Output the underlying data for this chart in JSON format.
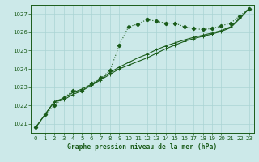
{
  "title": "Graphe pression niveau de la mer (hPa)",
  "background_color": "#cce9e9",
  "grid_color": "#aad4d4",
  "line_color": "#1a5c1a",
  "xlim": [
    -0.5,
    23.5
  ],
  "ylim": [
    1020.5,
    1027.5
  ],
  "yticks": [
    1021,
    1022,
    1023,
    1024,
    1025,
    1026,
    1027
  ],
  "xticks": [
    0,
    1,
    2,
    3,
    4,
    5,
    6,
    7,
    8,
    9,
    10,
    11,
    12,
    13,
    14,
    15,
    16,
    17,
    18,
    19,
    20,
    21,
    22,
    23
  ],
  "series1_x": [
    0,
    1,
    2,
    3,
    4,
    5,
    6,
    7,
    8,
    9,
    10,
    11,
    12,
    13,
    14,
    15,
    16,
    17,
    18,
    19,
    20,
    21,
    22,
    23
  ],
  "series1_y": [
    1020.8,
    1021.5,
    1022.0,
    1022.4,
    1022.8,
    1022.8,
    1023.2,
    1023.5,
    1023.9,
    1025.3,
    1026.3,
    1026.45,
    1026.7,
    1026.6,
    1026.5,
    1026.5,
    1026.3,
    1026.2,
    1026.15,
    1026.2,
    1026.35,
    1026.5,
    1026.9,
    1027.3
  ],
  "series2_x": [
    0,
    1,
    2,
    3,
    4,
    5,
    6,
    7,
    8,
    9,
    10,
    11,
    12,
    13,
    14,
    15,
    16,
    17,
    18,
    19,
    20,
    21,
    22,
    23
  ],
  "series2_y": [
    1020.8,
    1021.5,
    1022.2,
    1022.3,
    1022.6,
    1022.8,
    1023.1,
    1023.4,
    1023.7,
    1024.0,
    1024.2,
    1024.4,
    1024.6,
    1024.85,
    1025.1,
    1025.3,
    1025.5,
    1025.65,
    1025.78,
    1025.9,
    1026.05,
    1026.25,
    1026.75,
    1027.3
  ],
  "series3_x": [
    0,
    1,
    2,
    3,
    4,
    5,
    6,
    7,
    8,
    9,
    10,
    11,
    12,
    13,
    14,
    15,
    16,
    17,
    18,
    19,
    20,
    21,
    22,
    23
  ],
  "series3_y": [
    1020.8,
    1021.5,
    1022.2,
    1022.4,
    1022.7,
    1022.9,
    1023.15,
    1023.45,
    1023.8,
    1024.1,
    1024.35,
    1024.6,
    1024.8,
    1025.05,
    1025.25,
    1025.42,
    1025.58,
    1025.72,
    1025.84,
    1025.96,
    1026.1,
    1026.3,
    1026.78,
    1027.3
  ]
}
